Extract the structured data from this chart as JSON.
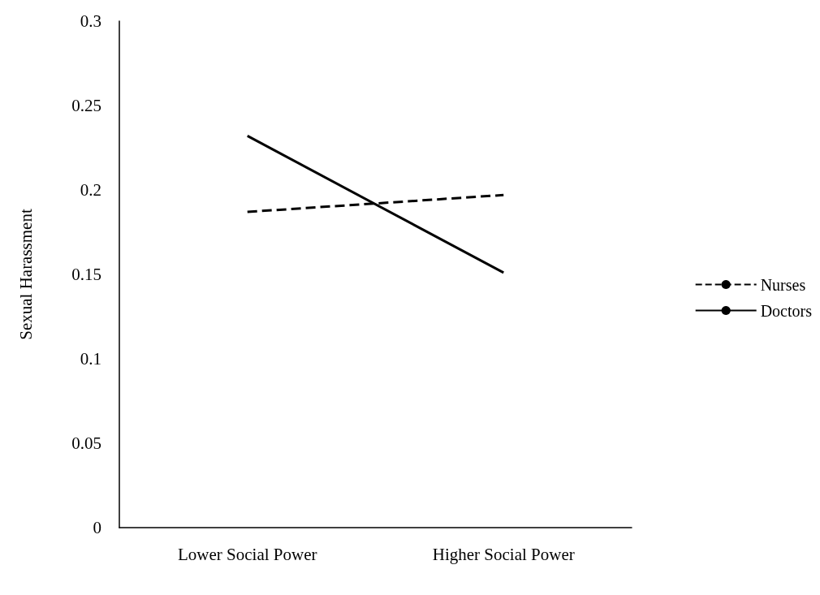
{
  "chart_data": {
    "type": "line",
    "ylabel": "Sexual Harassment",
    "categories": [
      "Lower Social Power",
      "Higher Social Power"
    ],
    "series": [
      {
        "name": "Nurses",
        "color": "#000000",
        "line_style": "dashed",
        "values": [
          0.187,
          0.197
        ]
      },
      {
        "name": "Doctors",
        "color": "#000000",
        "line_style": "solid",
        "values": [
          0.232,
          0.151
        ]
      }
    ],
    "ylim": [
      0,
      0.3
    ],
    "yticks": [
      0,
      0.05,
      0.1,
      0.15,
      0.2,
      0.25,
      0.3
    ],
    "grid": false,
    "legend": "right",
    "marker": "none"
  }
}
